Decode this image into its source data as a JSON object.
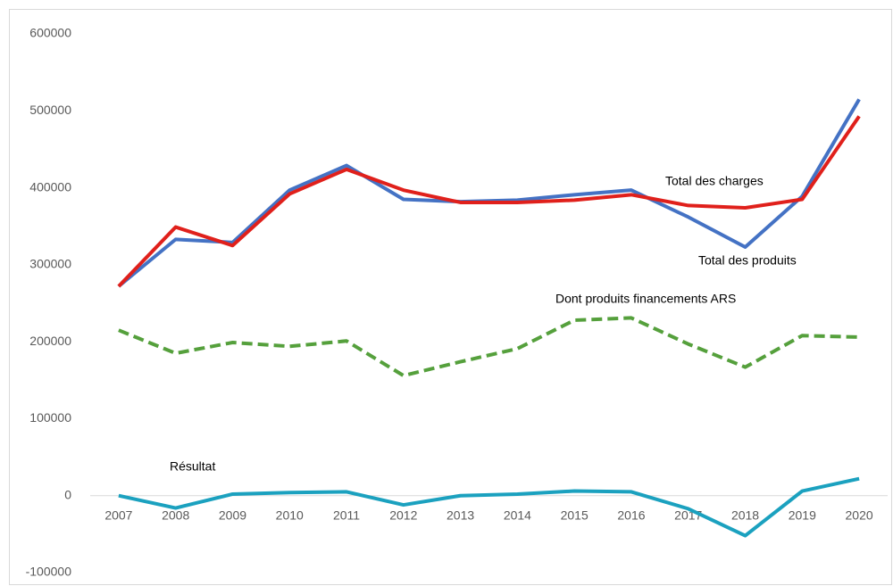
{
  "chart_data": {
    "type": "line",
    "categories": [
      "2007",
      "2008",
      "2009",
      "2010",
      "2011",
      "2012",
      "2013",
      "2014",
      "2015",
      "2016",
      "2017",
      "2018",
      "2019",
      "2020"
    ],
    "series": [
      {
        "name": "Total des produits",
        "color": "#4472c4",
        "dashed": false,
        "values": [
          272000,
          333000,
          329000,
          397000,
          429000,
          385000,
          382000,
          384000,
          391000,
          397000,
          362000,
          323000,
          389000,
          515000
        ]
      },
      {
        "name": "Total des charges",
        "color": "#e0201b",
        "dashed": false,
        "values": [
          272000,
          349000,
          325000,
          392000,
          424000,
          397000,
          381000,
          381000,
          384000,
          391000,
          377000,
          374000,
          385000,
          493000
        ]
      },
      {
        "name": "Dont produits financements  ARS",
        "color": "#55a03c",
        "dashed": true,
        "values": [
          215000,
          185000,
          199000,
          194000,
          201000,
          156000,
          174000,
          191000,
          228000,
          231000,
          197000,
          167000,
          208000,
          206000
        ]
      },
      {
        "name": "Résultat",
        "color": "#1ba1bf",
        "dashed": false,
        "values": [
          0,
          -16000,
          2000,
          4000,
          5000,
          -12000,
          0,
          2000,
          6000,
          5000,
          -17000,
          -52000,
          6000,
          22000
        ]
      }
    ],
    "ylim": [
      -100000,
      600000
    ],
    "yticks": [
      -100000,
      0,
      100000,
      200000,
      300000,
      400000,
      500000,
      600000
    ],
    "grid": false
  }
}
